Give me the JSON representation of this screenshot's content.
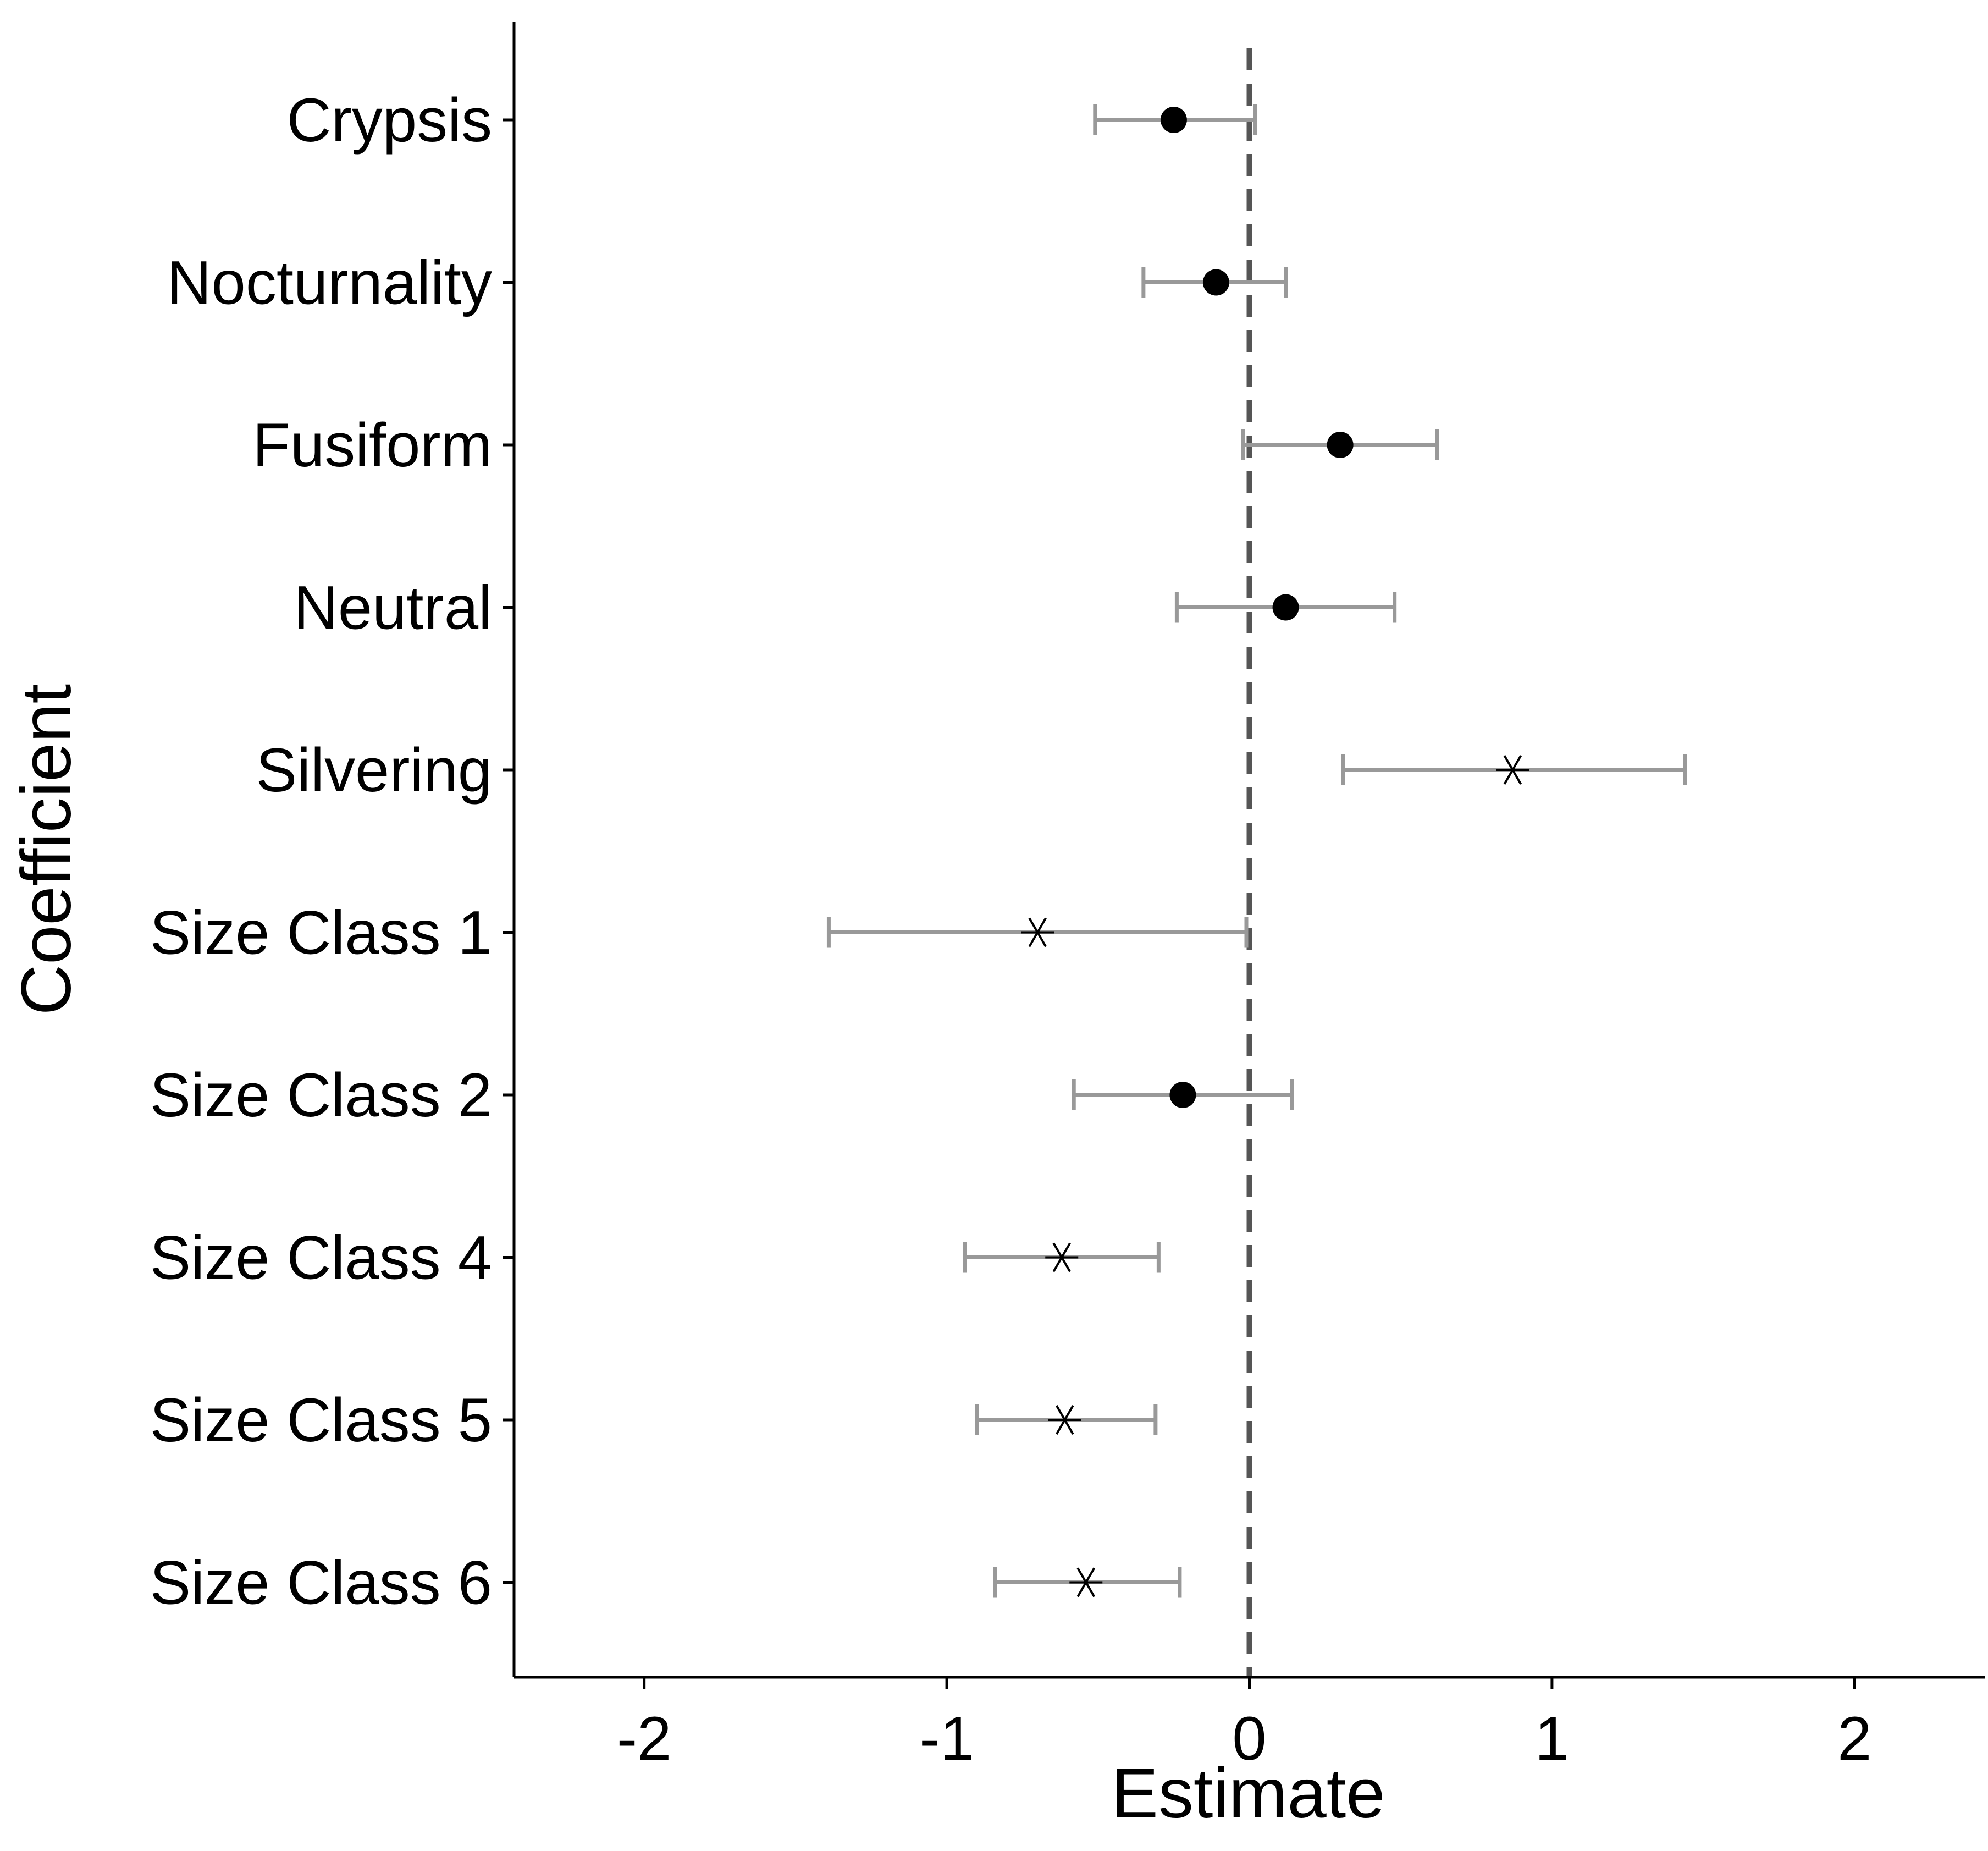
{
  "chart_data": {
    "type": "scatter",
    "subtype": "coefficient-plot",
    "xlabel": "Estimate",
    "ylabel": "Coefficient",
    "xlim": [
      -2.43,
      2.43
    ],
    "x_ticks": [
      -2,
      -1,
      0,
      1,
      2
    ],
    "x_tick_labels": [
      "-2",
      "-1",
      "0",
      "1",
      "2"
    ],
    "reference_line": {
      "x": 0,
      "style": "dashed",
      "color": "#555555"
    },
    "grid": false,
    "legend": "none",
    "categories": [
      "Crypsis",
      "Nocturnality",
      "Fusiform",
      "Neutral",
      "Silvering",
      "Size Class 1",
      "Size Class 2",
      "Size Class 4",
      "Size Class 5",
      "Size Class 6"
    ],
    "series": [
      {
        "estimate": [
          -0.25,
          -0.11,
          0.3,
          0.12,
          0.87,
          -0.7,
          -0.22,
          -0.62,
          -0.61,
          -0.54
        ],
        "ci_low": [
          -0.51,
          -0.35,
          -0.02,
          -0.24,
          0.31,
          -1.39,
          -0.58,
          -0.94,
          -0.9,
          -0.84
        ],
        "ci_high": [
          0.02,
          0.12,
          0.62,
          0.48,
          1.44,
          -0.01,
          0.14,
          -0.3,
          -0.31,
          -0.23
        ],
        "marker": [
          "dot",
          "dot",
          "dot",
          "dot",
          "asterisk",
          "asterisk",
          "dot",
          "asterisk",
          "asterisk",
          "asterisk"
        ]
      }
    ],
    "colors": {
      "point": "#000000",
      "errorbar": "#999999",
      "axis": "#000000"
    }
  }
}
